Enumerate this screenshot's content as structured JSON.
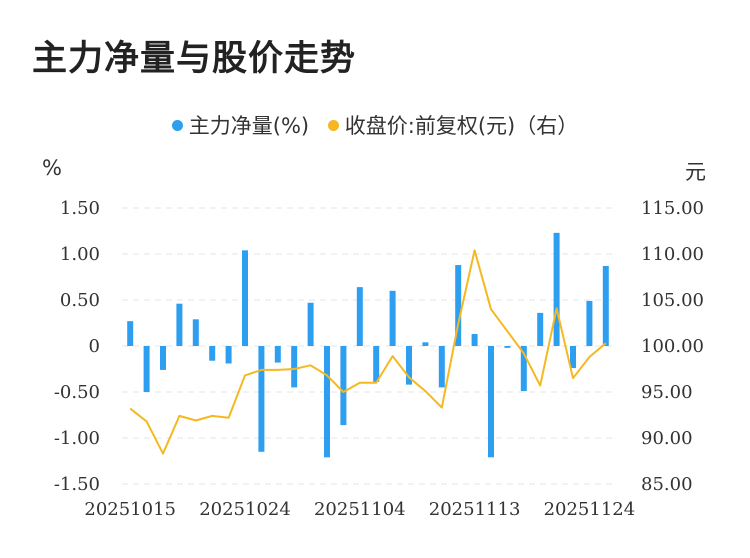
{
  "title": "主力净量与股价走势",
  "legend": {
    "items": [
      {
        "label": "主力净量(%)",
        "color": "#2e9ff0"
      },
      {
        "label": "收盘价:前复权(元)（右）",
        "color": "#f5b820"
      }
    ]
  },
  "units": {
    "left": "%",
    "right": "元"
  },
  "chart_data": {
    "type": "bar+line",
    "x_tick_labels": [
      "20251015",
      "20251024",
      "20251104",
      "20251113",
      "20251124"
    ],
    "x_tick_indices": [
      0,
      7,
      14,
      21,
      28
    ],
    "left_axis": {
      "min": -1.5,
      "max": 1.5,
      "ticks": [
        "1.50",
        "1.00",
        "0.50",
        "0",
        "-0.50",
        "-1.00",
        "-1.50"
      ]
    },
    "right_axis": {
      "min": 85,
      "max": 115,
      "ticks": [
        "115.00",
        "110.00",
        "105.00",
        "100.00",
        "95.00",
        "90.00",
        "85.00"
      ]
    },
    "grid": true,
    "series": [
      {
        "name": "主力净量(%)",
        "type": "bar",
        "color": "#2e9ff0",
        "values": [
          0.27,
          -0.5,
          -0.26,
          0.46,
          0.29,
          -0.16,
          -0.19,
          1.04,
          -1.15,
          -0.18,
          -0.45,
          0.47,
          -1.21,
          -0.86,
          0.64,
          -0.39,
          0.6,
          -0.42,
          0.04,
          -0.45,
          0.88,
          0.13,
          -1.21,
          -0.02,
          -0.49,
          0.36,
          1.23,
          -0.24,
          0.49,
          0.87
        ]
      },
      {
        "name": "收盘价:前复权(元)（右）",
        "type": "line",
        "color": "#f5b820",
        "values": [
          93.2,
          91.8,
          88.3,
          92.4,
          91.9,
          92.4,
          92.2,
          96.8,
          97.4,
          97.4,
          97.5,
          97.9,
          96.8,
          95.0,
          96.0,
          96.0,
          98.9,
          96.6,
          95.1,
          93.3,
          102.4,
          110.4,
          104.0,
          101.6,
          99.2,
          95.7,
          104.1,
          96.5,
          98.8,
          100.3
        ]
      }
    ]
  }
}
